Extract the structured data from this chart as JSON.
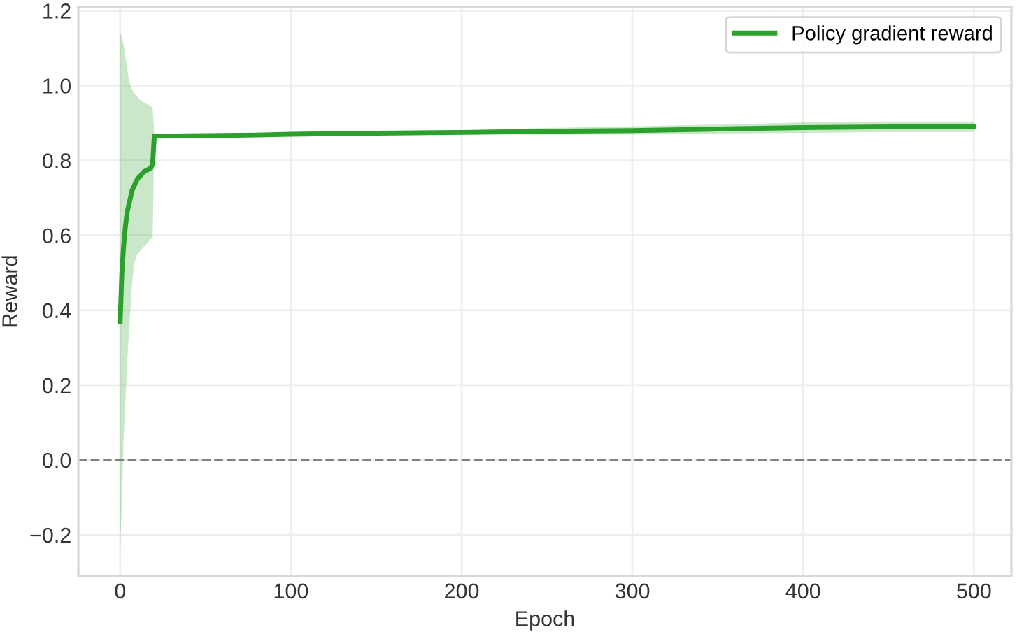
{
  "chart_data": {
    "type": "line",
    "xlabel": "Epoch",
    "ylabel": "Reward",
    "series": [
      {
        "name": "Policy gradient reward",
        "color": "#2ca02c",
        "x": [
          0,
          1,
          2,
          3,
          4,
          5,
          6,
          7,
          8,
          10,
          12,
          14,
          16,
          18,
          19,
          20,
          40,
          60,
          80,
          100,
          150,
          200,
          250,
          300,
          350,
          400,
          450,
          500
        ],
        "values": [
          0.37,
          0.5,
          0.57,
          0.62,
          0.66,
          0.68,
          0.7,
          0.72,
          0.73,
          0.75,
          0.76,
          0.77,
          0.775,
          0.78,
          0.79,
          0.865,
          0.866,
          0.867,
          0.868,
          0.87,
          0.873,
          0.875,
          0.878,
          0.88,
          0.884,
          0.888,
          0.89,
          0.89
        ],
        "lower": [
          -0.25,
          -0.1,
          0.05,
          0.15,
          0.25,
          0.33,
          0.4,
          0.47,
          0.52,
          0.55,
          0.56,
          0.57,
          0.58,
          0.59,
          0.59,
          0.86,
          0.861,
          0.862,
          0.863,
          0.865,
          0.867,
          0.869,
          0.869,
          0.869,
          0.872,
          0.874,
          0.876,
          0.876
        ],
        "upper": [
          1.14,
          1.13,
          1.11,
          1.08,
          1.05,
          1.02,
          1.0,
          0.99,
          0.98,
          0.97,
          0.96,
          0.955,
          0.95,
          0.945,
          0.94,
          0.87,
          0.871,
          0.872,
          0.873,
          0.875,
          0.879,
          0.881,
          0.887,
          0.891,
          0.896,
          0.902,
          0.904,
          0.904
        ]
      }
    ],
    "ref_lines": [
      {
        "axis": "y",
        "value": 0,
        "color": "#808080",
        "line_style": "dashed"
      }
    ],
    "xlim": [
      -24.5,
      522
    ],
    "ylim": [
      -0.31,
      1.21
    ],
    "xticks": [
      0,
      100,
      200,
      300,
      400,
      500
    ],
    "yticks": [
      {
        "value": -0.2,
        "label": "−0.2"
      },
      {
        "value": 0.0,
        "label": "0.0"
      },
      {
        "value": 0.2,
        "label": "0.2"
      },
      {
        "value": 0.4,
        "label": "0.4"
      },
      {
        "value": 0.6,
        "label": "0.6"
      },
      {
        "value": 0.8,
        "label": "0.8"
      },
      {
        "value": 1.0,
        "label": "1.0"
      },
      {
        "value": 1.2,
        "label": "1.2"
      }
    ],
    "grid": true,
    "legend": "upper right"
  }
}
